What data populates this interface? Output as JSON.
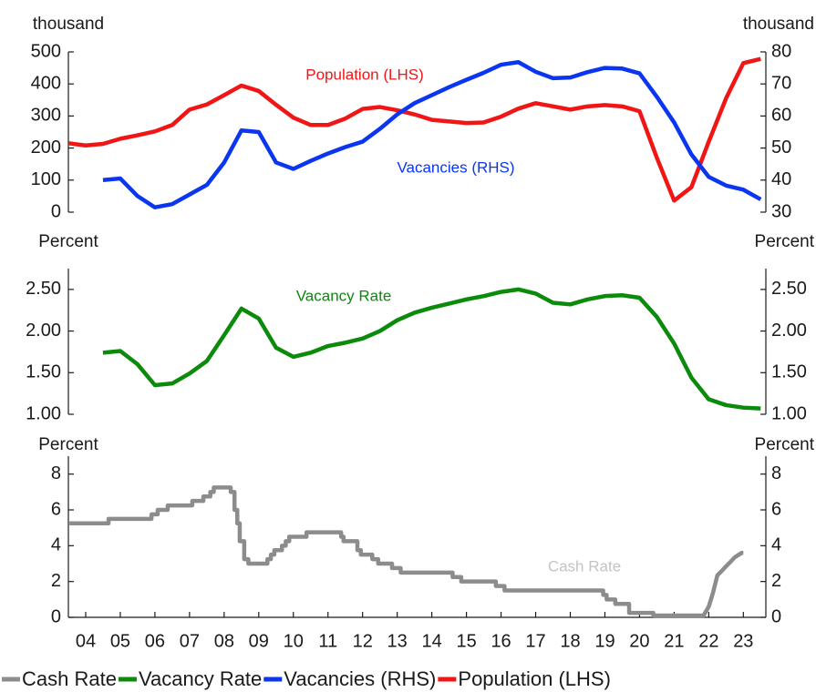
{
  "chart_data": [
    {
      "type": "line",
      "ylabel": "thousand",
      "y2label": "thousand",
      "xlim": [
        2004,
        2024.15
      ],
      "ylim": [
        0,
        500
      ],
      "yticks": [
        0,
        100,
        200,
        300,
        400,
        500
      ],
      "y2lim": [
        30,
        80
      ],
      "y2ticks": [
        30,
        40,
        50,
        60,
        70,
        80
      ],
      "x": [
        2004,
        2004.5,
        2005,
        2005.5,
        2006,
        2006.5,
        2007,
        2007.5,
        2008,
        2008.5,
        2009,
        2009.5,
        2010,
        2010.5,
        2011,
        2011.5,
        2012,
        2012.5,
        2013,
        2013.5,
        2014,
        2014.5,
        2015,
        2015.5,
        2016,
        2016.5,
        2017,
        2017.5,
        2018,
        2018.5,
        2019,
        2019.5,
        2020,
        2020.5,
        2021,
        2021.5,
        2022,
        2022.5,
        2023,
        2023.5,
        2024
      ],
      "series": [
        {
          "name": "Population (LHS)",
          "color": "#f01616",
          "values": [
            215,
            208,
            213,
            229,
            240,
            252,
            272,
            320,
            336,
            365,
            395,
            378,
            335,
            295,
            272,
            272,
            292,
            322,
            328,
            318,
            305,
            288,
            283,
            278,
            280,
            298,
            323,
            340,
            330,
            320,
            330,
            334,
            330,
            315,
            170,
            36,
            78,
            220,
            355,
            465,
            478
          ]
        },
        {
          "name": "Vacancies (RHS)",
          "color": "#0a36f0",
          "axis": "y2",
          "values": [
            null,
            null,
            40,
            40.5,
            35,
            31.5,
            32.5,
            35.5,
            38.5,
            45.5,
            55.5,
            55,
            45.5,
            43.5,
            46,
            48.3,
            50.3,
            52,
            56,
            60.5,
            64,
            66.5,
            69,
            71.3,
            73.5,
            76,
            76.8,
            73.8,
            71.8,
            72,
            73.7,
            75,
            74.8,
            73.3,
            66,
            58,
            48,
            41,
            38.3,
            37,
            34
          ]
        }
      ]
    },
    {
      "type": "line",
      "ylabel": "Percent",
      "y2label": "Percent",
      "xlim": [
        2004,
        2024.15
      ],
      "ylim": [
        1,
        2.75
      ],
      "yticks": [
        {
          "value": 1,
          "label": "1.00"
        },
        {
          "value": 1.5,
          "label": "1.50"
        },
        {
          "value": 2,
          "label": "2.00"
        },
        {
          "value": 2.5,
          "label": "2.50"
        }
      ],
      "x": [
        2004,
        2004.5,
        2005,
        2005.5,
        2006,
        2006.5,
        2007,
        2007.5,
        2008,
        2008.5,
        2009,
        2009.5,
        2010,
        2010.5,
        2011,
        2011.5,
        2012,
        2012.5,
        2013,
        2013.5,
        2014,
        2014.5,
        2015,
        2015.5,
        2016,
        2016.5,
        2017,
        2017.5,
        2018,
        2018.5,
        2019,
        2019.5,
        2020,
        2020.5,
        2021,
        2021.5,
        2022,
        2022.5,
        2023,
        2023.5,
        2024
      ],
      "series": [
        {
          "name": "Vacancy Rate",
          "color": "#0b8a0b",
          "values": [
            null,
            null,
            1.74,
            1.76,
            1.6,
            1.35,
            1.37,
            1.49,
            1.64,
            1.95,
            2.27,
            2.15,
            1.8,
            1.69,
            1.74,
            1.82,
            1.86,
            1.91,
            2.0,
            2.13,
            2.22,
            2.28,
            2.33,
            2.38,
            2.42,
            2.47,
            2.5,
            2.45,
            2.34,
            2.32,
            2.38,
            2.42,
            2.43,
            2.4,
            2.17,
            1.85,
            1.44,
            1.18,
            1.11,
            1.08,
            1.07
          ]
        }
      ]
    },
    {
      "type": "line",
      "ylabel": "Percent",
      "y2label": "Percent",
      "xlim": [
        2004,
        2024.15
      ],
      "ylim": [
        0,
        9
      ],
      "yticks": [
        0,
        2,
        4,
        6,
        8
      ],
      "xticks": [
        {
          "value": 2004.5,
          "label": "04"
        },
        {
          "value": 2005.5,
          "label": "05"
        },
        {
          "value": 2006.5,
          "label": "06"
        },
        {
          "value": 2007.5,
          "label": "07"
        },
        {
          "value": 2008.5,
          "label": "08"
        },
        {
          "value": 2009.5,
          "label": "09"
        },
        {
          "value": 2010.5,
          "label": "10"
        },
        {
          "value": 2011.5,
          "label": "11"
        },
        {
          "value": 2012.5,
          "label": "12"
        },
        {
          "value": 2013.5,
          "label": "13"
        },
        {
          "value": 2014.5,
          "label": "14"
        },
        {
          "value": 2015.5,
          "label": "15"
        },
        {
          "value": 2016.5,
          "label": "16"
        },
        {
          "value": 2017.5,
          "label": "17"
        },
        {
          "value": 2018.5,
          "label": "18"
        },
        {
          "value": 2019.5,
          "label": "19"
        },
        {
          "value": 2020.5,
          "label": "20"
        },
        {
          "value": 2021.5,
          "label": "21"
        },
        {
          "value": 2022.5,
          "label": "22"
        },
        {
          "value": 2023.5,
          "label": "23"
        }
      ],
      "x": [
        2004.03,
        2005.16,
        2005.16,
        2006.4,
        2006.4,
        2006.58,
        2006.58,
        2006.87,
        2006.87,
        2007.58,
        2007.58,
        2007.9,
        2007.9,
        2008.1,
        2008.1,
        2008.2,
        2008.2,
        2008.69,
        2008.69,
        2008.8,
        2008.8,
        2008.88,
        2008.88,
        2008.95,
        2008.95,
        2009.08,
        2009.08,
        2009.2,
        2009.2,
        2009.75,
        2009.75,
        2009.85,
        2009.85,
        2009.95,
        2009.95,
        2010.17,
        2010.17,
        2010.28,
        2010.28,
        2010.38,
        2010.38,
        2010.88,
        2010.88,
        2011.88,
        2011.88,
        2011.95,
        2011.95,
        2012.35,
        2012.35,
        2012.45,
        2012.45,
        2012.78,
        2012.78,
        2012.95,
        2012.95,
        2013.35,
        2013.35,
        2013.6,
        2013.6,
        2015.1,
        2015.1,
        2015.35,
        2015.35,
        2016.35,
        2016.35,
        2016.6,
        2016.6,
        2019.45,
        2019.45,
        2019.55,
        2019.55,
        2019.8,
        2019.8,
        2020.2,
        2020.2,
        2020.9,
        2020.9,
        2022.35,
        2022.5,
        2022.62,
        2022.75,
        2022.88,
        2023.0,
        2023.13,
        2023.25,
        2023.45,
        2023.5
      ],
      "series": [
        {
          "name": "Cash Rate",
          "color": "#8c8c8c",
          "values": [
            5.25,
            5.25,
            5.5,
            5.5,
            5.75,
            5.75,
            6.0,
            6.0,
            6.25,
            6.25,
            6.5,
            6.5,
            6.75,
            6.75,
            7.0,
            7.0,
            7.25,
            7.25,
            7.0,
            7.0,
            6.0,
            6.0,
            5.25,
            5.25,
            4.25,
            4.25,
            3.25,
            3.25,
            3.0,
            3.0,
            3.25,
            3.25,
            3.5,
            3.5,
            3.75,
            3.75,
            4.0,
            4.0,
            4.25,
            4.25,
            4.5,
            4.5,
            4.75,
            4.75,
            4.5,
            4.5,
            4.25,
            4.25,
            3.75,
            3.75,
            3.5,
            3.5,
            3.25,
            3.25,
            3.0,
            3.0,
            2.75,
            2.75,
            2.5,
            2.5,
            2.25,
            2.25,
            2.0,
            2.0,
            1.75,
            1.75,
            1.5,
            1.5,
            1.25,
            1.25,
            1.0,
            1.0,
            0.75,
            0.75,
            0.25,
            0.25,
            0.1,
            0.1,
            0.6,
            1.35,
            2.35,
            2.6,
            2.85,
            3.1,
            3.35,
            3.6,
            3.6
          ]
        }
      ]
    }
  ]
}
